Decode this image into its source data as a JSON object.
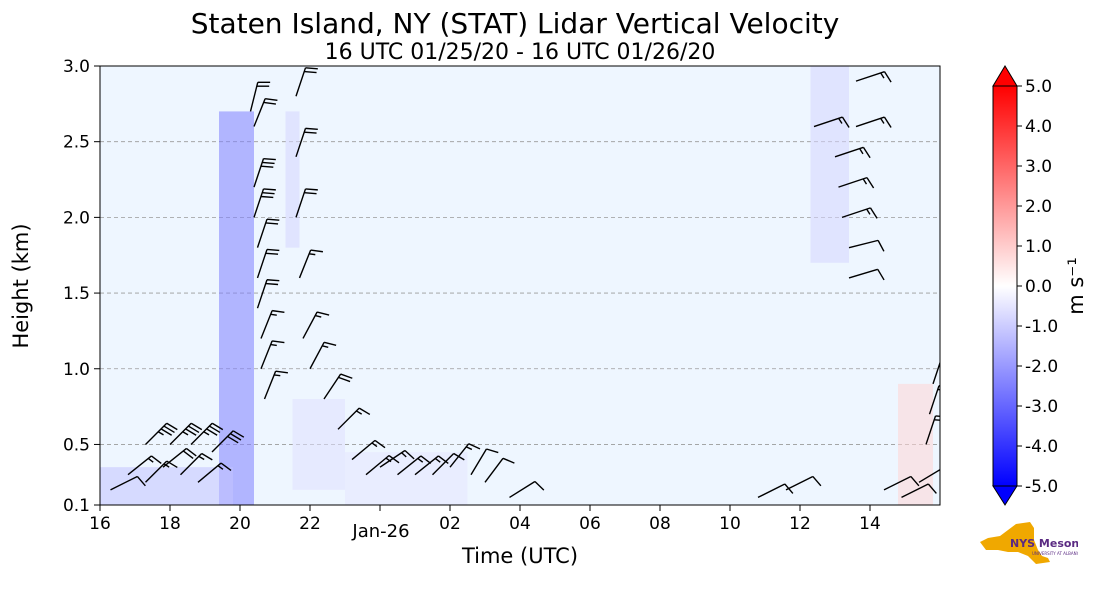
{
  "chart_data": {
    "type": "heatmap",
    "title": "Staten Island, NY (STAT) Lidar Vertical Velocity",
    "subtitle": "16 UTC 01/25/20 - 16 UTC 01/26/20",
    "xlabel": "Time (UTC)",
    "ylabel": "Height (km)",
    "xlim": [
      16,
      40
    ],
    "ylim": [
      0.1,
      3.0
    ],
    "x_ticks": [
      {
        "value": 16,
        "label": "16"
      },
      {
        "value": 18,
        "label": "18"
      },
      {
        "value": 20,
        "label": "20"
      },
      {
        "value": 22,
        "label": "22"
      },
      {
        "value": 26,
        "label": "02"
      },
      {
        "value": 28,
        "label": "04"
      },
      {
        "value": 30,
        "label": "06"
      },
      {
        "value": 32,
        "label": "08"
      },
      {
        "value": 34,
        "label": "10"
      },
      {
        "value": 36,
        "label": "12"
      },
      {
        "value": 38,
        "label": "14"
      }
    ],
    "date_label": {
      "value": 24,
      "label": "Jan-26"
    },
    "y_ticks": [
      "0.1",
      "0.5",
      "1.0",
      "1.5",
      "2.0",
      "2.5",
      "3.0"
    ],
    "grid": "horizontal dashed",
    "colorbar": {
      "label": "m s⁻¹",
      "range": [
        -5.0,
        5.0
      ],
      "tick_labels": [
        "5.0",
        "4.0",
        "3.0",
        "2.0",
        "1.0",
        "0.0",
        "-1.0",
        "-2.0",
        "-3.0",
        "-4.0",
        "-5.0"
      ],
      "colors": [
        "#0000ff",
        "#ffffff",
        "#ff0000"
      ]
    },
    "background_color": "#eef6ff",
    "velocity_regions": [
      {
        "x": [
          19.4,
          20.4
        ],
        "y": [
          0.1,
          2.7
        ],
        "value": -2.5
      },
      {
        "x": [
          16.0,
          19.8
        ],
        "y": [
          0.1,
          0.35
        ],
        "value": -1.2
      },
      {
        "x": [
          21.3,
          21.7
        ],
        "y": [
          1.8,
          2.7
        ],
        "value": -0.8
      },
      {
        "x": [
          21.5,
          23.0
        ],
        "y": [
          0.2,
          0.8
        ],
        "value": -0.6
      },
      {
        "x": [
          23.0,
          26.5
        ],
        "y": [
          0.1,
          0.45
        ],
        "value": -0.5
      },
      {
        "x": [
          36.3,
          37.4
        ],
        "y": [
          1.7,
          3.0
        ],
        "value": -0.8
      },
      {
        "x": [
          38.8,
          39.8
        ],
        "y": [
          0.1,
          0.9
        ],
        "value": 0.8
      }
    ],
    "wind_barbs": [
      {
        "x": 16.3,
        "y": 0.2,
        "u": -8,
        "v": -4
      },
      {
        "x": 16.8,
        "y": 0.3,
        "u": -10,
        "v": -8
      },
      {
        "x": 17.3,
        "y": 0.25,
        "u": -10,
        "v": -10
      },
      {
        "x": 17.8,
        "y": 0.35,
        "u": -15,
        "v": -12
      },
      {
        "x": 18.3,
        "y": 0.3,
        "u": -12,
        "v": -12
      },
      {
        "x": 18.8,
        "y": 0.25,
        "u": -12,
        "v": -10
      },
      {
        "x": 17.3,
        "y": 0.5,
        "u": -25,
        "v": -25
      },
      {
        "x": 18.0,
        "y": 0.5,
        "u": -25,
        "v": -25
      },
      {
        "x": 18.6,
        "y": 0.5,
        "u": -25,
        "v": -25
      },
      {
        "x": 19.2,
        "y": 0.45,
        "u": -20,
        "v": -20
      },
      {
        "x": 20.3,
        "y": 2.7,
        "u": -5,
        "v": -20
      },
      {
        "x": 20.4,
        "y": 2.6,
        "u": -8,
        "v": -20
      },
      {
        "x": 20.4,
        "y": 2.2,
        "u": -10,
        "v": -30
      },
      {
        "x": 20.4,
        "y": 2.0,
        "u": -10,
        "v": -30
      },
      {
        "x": 20.5,
        "y": 1.8,
        "u": -6,
        "v": -18
      },
      {
        "x": 20.5,
        "y": 1.6,
        "u": -6,
        "v": -18
      },
      {
        "x": 20.5,
        "y": 1.4,
        "u": -6,
        "v": -18
      },
      {
        "x": 20.6,
        "y": 1.2,
        "u": -6,
        "v": -15
      },
      {
        "x": 20.6,
        "y": 1.0,
        "u": -6,
        "v": -15
      },
      {
        "x": 20.7,
        "y": 0.8,
        "u": -6,
        "v": -15
      },
      {
        "x": 21.6,
        "y": 2.8,
        "u": -6,
        "v": -18
      },
      {
        "x": 21.6,
        "y": 2.4,
        "u": -6,
        "v": -18
      },
      {
        "x": 21.6,
        "y": 2.0,
        "u": -6,
        "v": -18
      },
      {
        "x": 21.7,
        "y": 1.6,
        "u": -6,
        "v": -15
      },
      {
        "x": 21.8,
        "y": 1.2,
        "u": -8,
        "v": -15
      },
      {
        "x": 22.0,
        "y": 1.0,
        "u": -8,
        "v": -15
      },
      {
        "x": 22.4,
        "y": 0.8,
        "u": -10,
        "v": -15
      },
      {
        "x": 22.8,
        "y": 0.6,
        "u": -12,
        "v": -12
      },
      {
        "x": 23.2,
        "y": 0.4,
        "u": -12,
        "v": -10
      },
      {
        "x": 23.6,
        "y": 0.3,
        "u": -12,
        "v": -10
      },
      {
        "x": 24.0,
        "y": 0.35,
        "u": -12,
        "v": -8
      },
      {
        "x": 24.5,
        "y": 0.3,
        "u": -10,
        "v": -8
      },
      {
        "x": 25.0,
        "y": 0.3,
        "u": -10,
        "v": -8
      },
      {
        "x": 25.5,
        "y": 0.3,
        "u": -8,
        "v": -8
      },
      {
        "x": 26.0,
        "y": 0.35,
        "u": -8,
        "v": -10
      },
      {
        "x": 26.6,
        "y": 0.3,
        "u": -6,
        "v": -10
      },
      {
        "x": 27.0,
        "y": 0.25,
        "u": -6,
        "v": -8
      },
      {
        "x": 27.7,
        "y": 0.15,
        "u": -8,
        "v": -5
      },
      {
        "x": 34.8,
        "y": 0.15,
        "u": -10,
        "v": -5
      },
      {
        "x": 35.6,
        "y": 0.2,
        "u": -10,
        "v": -5
      },
      {
        "x": 36.4,
        "y": 2.6,
        "u": -15,
        "v": -5
      },
      {
        "x": 37.0,
        "y": 2.4,
        "u": -15,
        "v": -5
      },
      {
        "x": 37.1,
        "y": 2.2,
        "u": -15,
        "v": -5
      },
      {
        "x": 37.2,
        "y": 2.0,
        "u": -15,
        "v": -5
      },
      {
        "x": 37.4,
        "y": 1.8,
        "u": -12,
        "v": -3
      },
      {
        "x": 37.4,
        "y": 1.6,
        "u": -10,
        "v": -3
      },
      {
        "x": 37.6,
        "y": 2.9,
        "u": -15,
        "v": -5
      },
      {
        "x": 37.6,
        "y": 2.6,
        "u": -15,
        "v": -5
      },
      {
        "x": 38.4,
        "y": 0.2,
        "u": -10,
        "v": -5
      },
      {
        "x": 38.9,
        "y": 0.15,
        "u": -10,
        "v": -5
      },
      {
        "x": 39.4,
        "y": 0.25,
        "u": -10,
        "v": -6
      },
      {
        "x": 39.6,
        "y": 0.5,
        "u": -5,
        "v": -15
      },
      {
        "x": 39.7,
        "y": 0.7,
        "u": -5,
        "v": -15
      },
      {
        "x": 39.8,
        "y": 0.9,
        "u": -5,
        "v": -15
      }
    ]
  },
  "logo": {
    "text": "NYS Mesonet",
    "subtext": "UNIVERSITY AT ALBANY",
    "colors": {
      "state": "#f0a800",
      "text": "#5a2a82"
    }
  }
}
